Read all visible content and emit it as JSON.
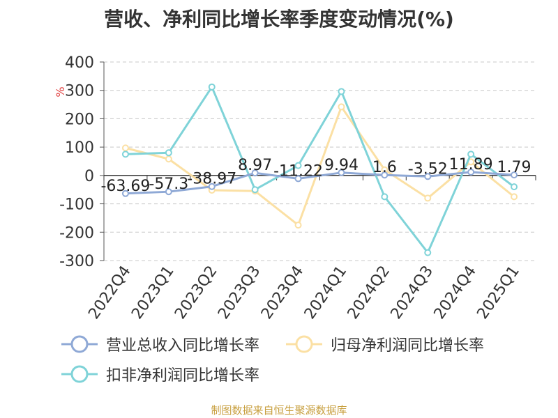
{
  "title": "营收、净利同比增长率季度变动情况(%)",
  "source": "制图数据来自恒生聚源数据库",
  "colors": {
    "revenue": "#8fa9d6",
    "net_profit": "#fbe0a4",
    "deducted": "#7fd3d8"
  },
  "chart_data": {
    "type": "line",
    "title": "营收、净利同比增长率季度变动情况(%)",
    "ylabel": "%",
    "ylim": [
      -300,
      400
    ],
    "yticks": [
      400,
      300,
      200,
      100,
      0,
      -100,
      -200,
      -300
    ],
    "grid": true,
    "legend": "bottom",
    "categories": [
      "2022Q4",
      "2023Q1",
      "2023Q2",
      "2023Q3",
      "2023Q4",
      "2024Q1",
      "2024Q2",
      "2024Q3",
      "2024Q4",
      "2025Q1"
    ],
    "series": [
      {
        "name": "营业总收入同比增长率",
        "color": "#8fa9d6",
        "values": [
          -63.69,
          -57.3,
          -38.97,
          8.97,
          -11.22,
          9.94,
          1.6,
          -3.52,
          11.89,
          1.79
        ],
        "labels": [
          "-63.69",
          "-57.3",
          "-38.97",
          "8.97",
          "-11.22",
          "9.94",
          "1.6",
          "-3.52",
          "11.89",
          "1.79"
        ]
      },
      {
        "name": "归母净利润同比增长率",
        "color": "#fbe0a4",
        "values": [
          97,
          58,
          -52,
          -55,
          -175,
          242,
          20,
          -80,
          48,
          -75
        ]
      },
      {
        "name": "扣非净利润同比增长率",
        "color": "#7fd3d8",
        "values": [
          75,
          80,
          312,
          -50,
          35,
          296,
          -75,
          -272,
          75,
          -40
        ]
      }
    ]
  }
}
